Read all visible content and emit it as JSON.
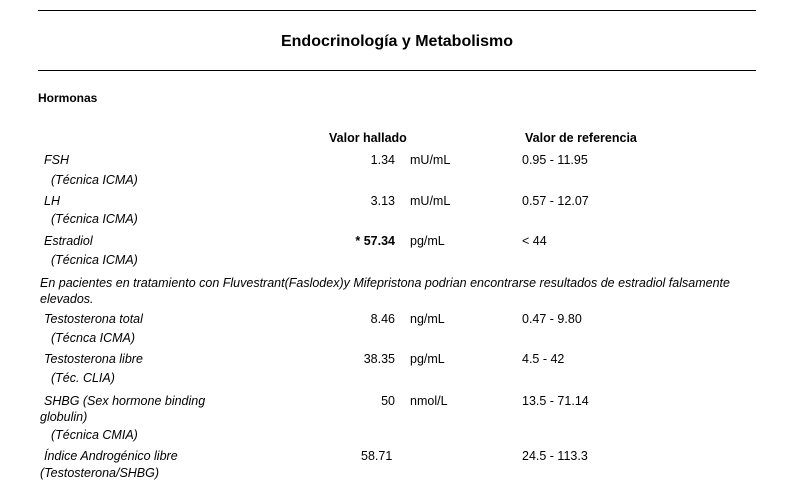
{
  "document": {
    "title": "Endocrinología y Metabolismo",
    "section": "Hormonas",
    "columns": {
      "value": "Valor hallado",
      "reference": "Valor de referencia"
    },
    "rows": [
      {
        "name": "FSH",
        "technique": "(Técnica ICMA)",
        "value": "1.34",
        "unit": "mU/mL",
        "reference": "0.95 - 11.95"
      },
      {
        "name": "LH",
        "technique": "(Técnica ICMA)",
        "value": "3.13",
        "unit": "mU/mL",
        "reference": "0.57 - 12.07"
      },
      {
        "name": "Estradiol",
        "technique": "(Técnica ICMA)",
        "value": "* 57.34",
        "unit": "pg/mL",
        "reference": "< 44",
        "flagged": true
      },
      {
        "name": "Testosterona total",
        "technique": "(Técnca ICMA)",
        "value": "8.46",
        "unit": "ng/mL",
        "reference": "0.47 - 9.80"
      },
      {
        "name": "Testosterona libre",
        "technique": "(Téc. CLIA)",
        "value": "38.35",
        "unit": "pg/mL",
        "reference": "4.5 - 42"
      },
      {
        "name_line1": "SHBG (Sex hormone binding",
        "name_line2": "globulin)",
        "technique": "(Técnica CMIA)",
        "value": "50",
        "unit": "nmol/L",
        "reference": "13.5 - 71.14"
      },
      {
        "name_line1": "Índice Androgénico libre",
        "name_line2": "(Testosterona/SHBG)",
        "value": "58.71",
        "unit": "",
        "reference": "24.5 - 113.3"
      }
    ],
    "note": "En pacientes en tratamiento con Fluvestrant(Faslodex)y Mifepristona podrian encontrarse resultados de estradiol falsamente elevados."
  }
}
